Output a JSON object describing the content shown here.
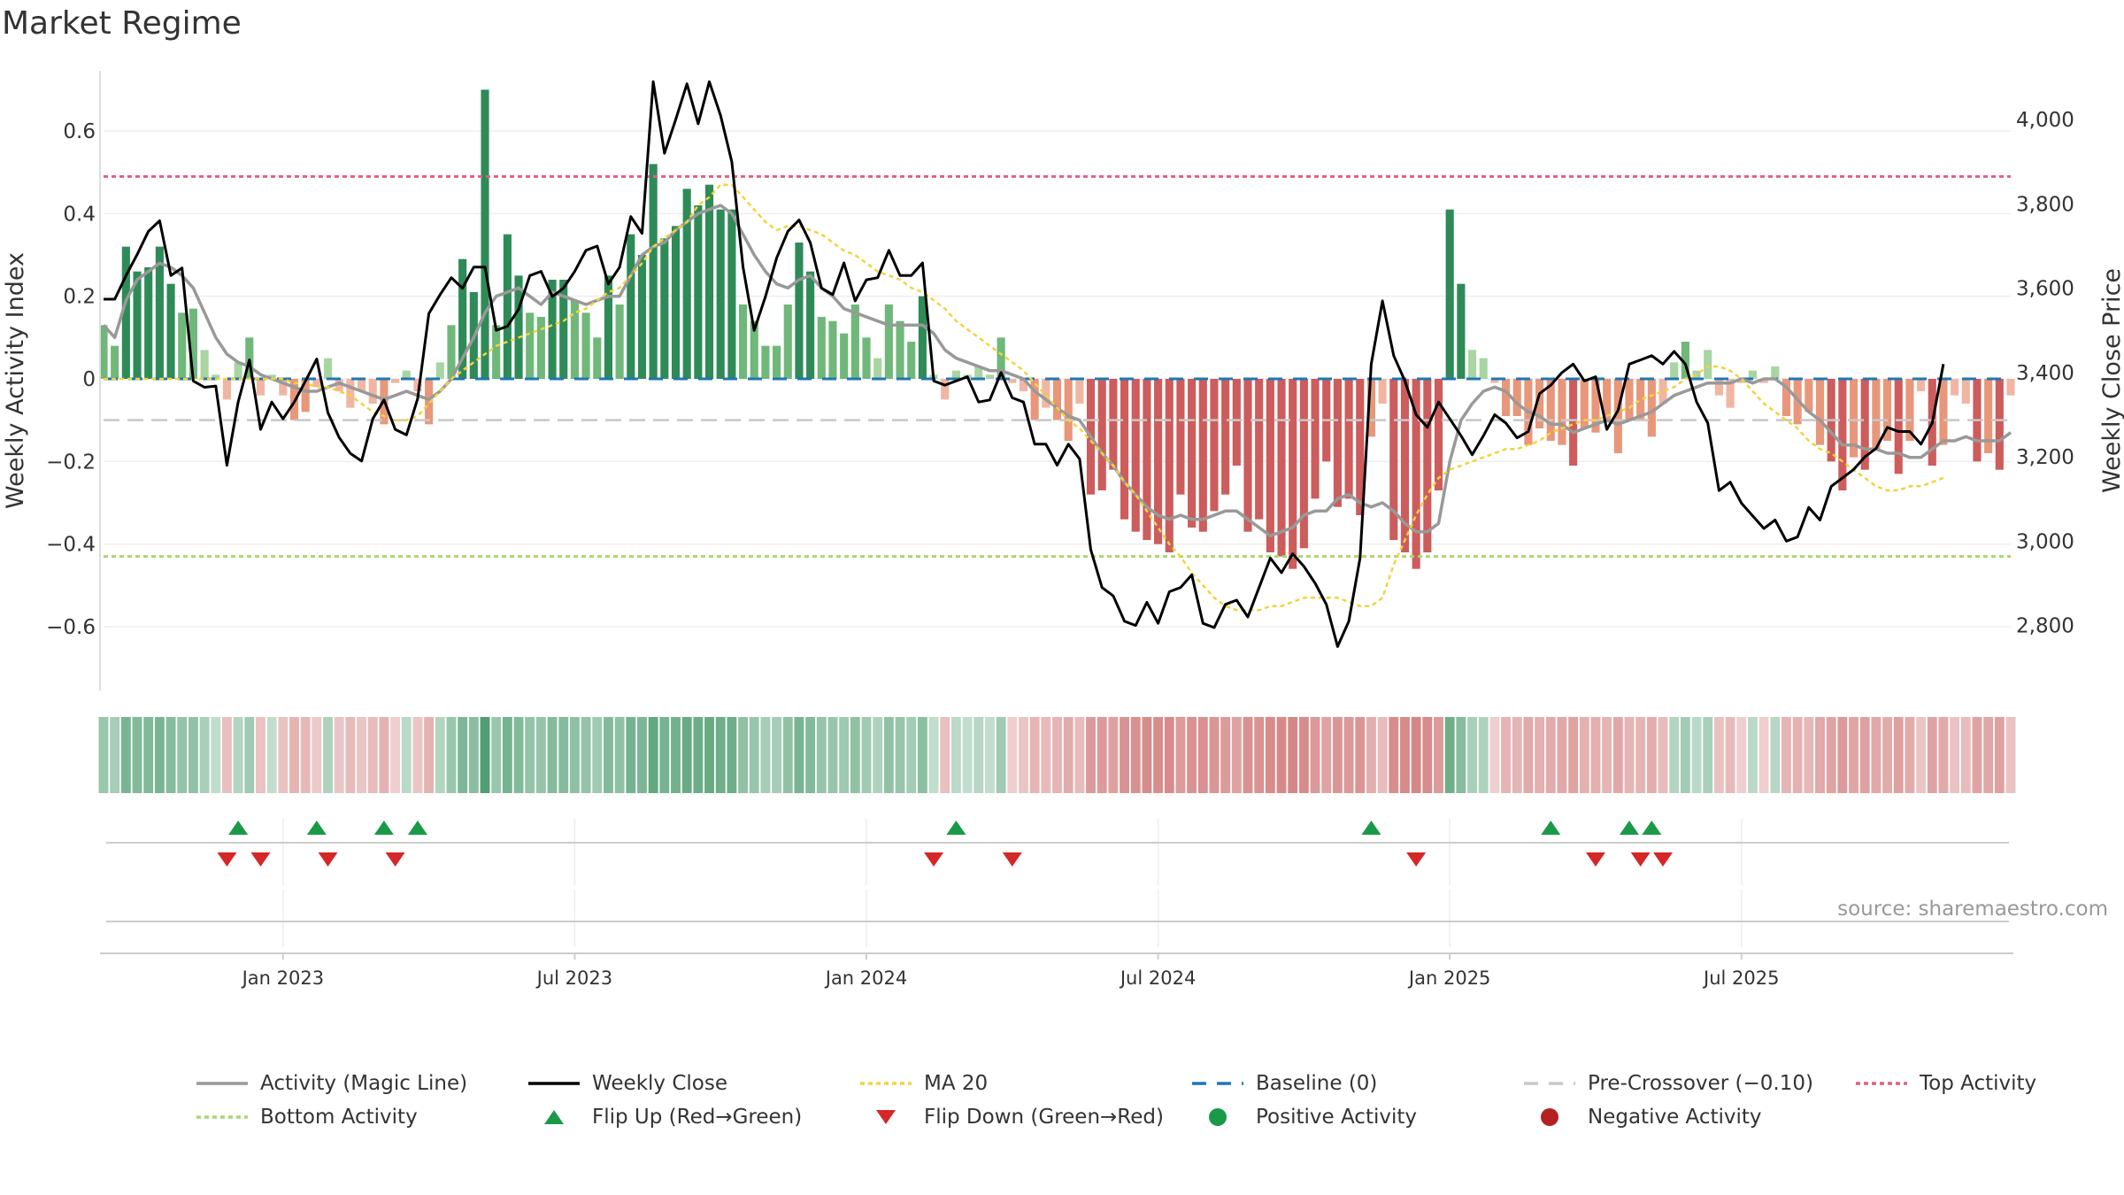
{
  "chart_data": {
    "type": "bar+line",
    "title": "Market Regime",
    "source_note": "source: sharemaestro.com",
    "x_ticks": [
      "Jan 2023",
      "Jul 2023",
      "Jan 2024",
      "Jul 2024",
      "Jan 2025",
      "Jul 2025"
    ],
    "left_axis": {
      "label": "Weekly Activity Index",
      "range": [
        -0.75,
        0.75
      ],
      "ticks": [
        -0.6,
        -0.4,
        -0.2,
        0,
        0.2,
        0.4,
        0.6
      ],
      "tick_labels": [
        "−0.6",
        "−0.4",
        "−0.2",
        "0",
        "0.2",
        "0.4",
        "0.6"
      ]
    },
    "right_axis": {
      "label": "Weekly Close Price",
      "range": [
        2650,
        4120
      ],
      "ticks": [
        2800,
        3000,
        3200,
        3400,
        3600,
        3800,
        4000
      ],
      "tick_labels": [
        "2,800",
        "3,000",
        "3,200",
        "3,400",
        "3,600",
        "3,800",
        "4,000"
      ]
    },
    "reference_lines": {
      "top_activity": 0.49,
      "bottom_activity": -0.43,
      "pre_crossover": -0.1,
      "baseline": 0
    },
    "activity": [
      0.13,
      0.08,
      0.32,
      0.26,
      0.27,
      0.32,
      0.23,
      0.16,
      0.17,
      0.07,
      0.01,
      -0.05,
      0.04,
      0.1,
      -0.04,
      0.01,
      -0.04,
      -0.1,
      -0.08,
      -0.02,
      0.05,
      -0.03,
      -0.07,
      -0.03,
      -0.06,
      -0.11,
      -0.01,
      0.02,
      -0.03,
      -0.11,
      0.04,
      0.13,
      0.29,
      0.21,
      0.7,
      0.13,
      0.35,
      0.25,
      0.16,
      0.15,
      0.24,
      0.24,
      0.19,
      0.16,
      0.1,
      0.25,
      0.18,
      0.35,
      0.3,
      0.52,
      0.34,
      0.37,
      0.46,
      0.42,
      0.47,
      0.41,
      0.41,
      0.18,
      0.14,
      0.08,
      0.08,
      0.18,
      0.33,
      0.26,
      0.15,
      0.14,
      0.11,
      0.18,
      0.1,
      0.05,
      0.18,
      0.14,
      0.09,
      0.2,
      0.01,
      -0.05,
      0.02,
      0.01,
      0.03,
      0.01,
      0.1,
      -0.01,
      -0.03,
      -0.1,
      -0.07,
      -0.1,
      -0.15,
      -0.06,
      -0.28,
      -0.27,
      -0.22,
      -0.34,
      -0.37,
      -0.39,
      -0.4,
      -0.42,
      -0.28,
      -0.36,
      -0.37,
      -0.32,
      -0.28,
      -0.21,
      -0.37,
      -0.34,
      -0.42,
      -0.43,
      -0.46,
      -0.41,
      -0.29,
      -0.2,
      -0.31,
      -0.29,
      -0.33,
      -0.14,
      -0.06,
      -0.39,
      -0.42,
      -0.46,
      -0.42,
      -0.27,
      0.41,
      0.23,
      0.07,
      0.05,
      -0.01,
      -0.09,
      -0.09,
      -0.16,
      -0.12,
      -0.15,
      -0.16,
      -0.21,
      -0.12,
      -0.13,
      -0.1,
      -0.18,
      -0.1,
      -0.1,
      -0.14,
      -0.06,
      0.04,
      0.09,
      0.02,
      0.07,
      -0.04,
      -0.07,
      -0.01,
      0.02,
      -0.01,
      0.03,
      -0.09,
      -0.11,
      -0.08,
      -0.16,
      -0.2,
      -0.27,
      -0.19,
      -0.22,
      -0.17,
      -0.15,
      -0.23,
      -0.15,
      -0.03,
      -0.21,
      -0.16,
      -0.04,
      -0.06,
      -0.2,
      -0.18,
      -0.22,
      -0.04
    ],
    "weekly_close": [
      3574,
      3574,
      3630,
      3680,
      3735,
      3760,
      3630,
      3648,
      3380,
      3365,
      3368,
      3180,
      3330,
      3430,
      3265,
      3330,
      3290,
      3330,
      3380,
      3432,
      3305,
      3246,
      3208,
      3190,
      3290,
      3335,
      3265,
      3252,
      3338,
      3540,
      3585,
      3625,
      3600,
      3650,
      3650,
      3500,
      3510,
      3550,
      3630,
      3640,
      3580,
      3600,
      3640,
      3690,
      3700,
      3610,
      3650,
      3770,
      3730,
      4090,
      3920,
      4000,
      4085,
      3990,
      4090,
      4010,
      3900,
      3650,
      3500,
      3580,
      3672,
      3735,
      3762,
      3708,
      3600,
      3585,
      3660,
      3570,
      3620,
      3625,
      3690,
      3630,
      3630,
      3660,
      3380,
      3370,
      3380,
      3390,
      3330,
      3335,
      3400,
      3340,
      3330,
      3230,
      3230,
      3180,
      3230,
      3195,
      2980,
      2890,
      2870,
      2810,
      2800,
      2855,
      2805,
      2880,
      2890,
      2920,
      2805,
      2795,
      2850,
      2860,
      2820,
      2890,
      2960,
      2925,
      2970,
      2940,
      2900,
      2850,
      2750,
      2810,
      2960,
      3420,
      3570,
      3440,
      3380,
      3300,
      3270,
      3330,
      3290,
      3250,
      3205,
      3250,
      3300,
      3280,
      3245,
      3260,
      3350,
      3370,
      3400,
      3420,
      3380,
      3390,
      3265,
      3310,
      3420,
      3430,
      3440,
      3420,
      3450,
      3420,
      3330,
      3280,
      3120,
      3140,
      3090,
      3060,
      3030,
      3050,
      3000,
      3010,
      3080,
      3050,
      3130,
      3150,
      3170,
      3200,
      3220,
      3270,
      3260,
      3260,
      3230,
      3280,
      3420
    ],
    "magic_line": [
      0.13,
      0.1,
      0.19,
      0.24,
      0.26,
      0.28,
      0.27,
      0.25,
      0.22,
      0.16,
      0.1,
      0.06,
      0.04,
      0.03,
      0.01,
      0.0,
      -0.01,
      -0.02,
      -0.03,
      -0.03,
      -0.02,
      -0.01,
      -0.02,
      -0.03,
      -0.04,
      -0.05,
      -0.04,
      -0.03,
      -0.04,
      -0.05,
      -0.03,
      0.0,
      0.05,
      0.1,
      0.16,
      0.2,
      0.21,
      0.22,
      0.2,
      0.18,
      0.21,
      0.2,
      0.19,
      0.18,
      0.19,
      0.2,
      0.2,
      0.25,
      0.3,
      0.32,
      0.33,
      0.36,
      0.38,
      0.4,
      0.41,
      0.42,
      0.4,
      0.35,
      0.3,
      0.26,
      0.23,
      0.22,
      0.24,
      0.25,
      0.22,
      0.2,
      0.17,
      0.16,
      0.15,
      0.14,
      0.13,
      0.13,
      0.13,
      0.13,
      0.11,
      0.07,
      0.05,
      0.04,
      0.03,
      0.02,
      0.02,
      0.01,
      0.0,
      -0.03,
      -0.05,
      -0.07,
      -0.09,
      -0.1,
      -0.14,
      -0.18,
      -0.21,
      -0.25,
      -0.28,
      -0.31,
      -0.33,
      -0.34,
      -0.33,
      -0.34,
      -0.34,
      -0.33,
      -0.32,
      -0.32,
      -0.34,
      -0.36,
      -0.38,
      -0.37,
      -0.36,
      -0.33,
      -0.32,
      -0.32,
      -0.29,
      -0.28,
      -0.3,
      -0.31,
      -0.3,
      -0.32,
      -0.35,
      -0.37,
      -0.37,
      -0.35,
      -0.2,
      -0.1,
      -0.06,
      -0.03,
      -0.02,
      -0.03,
      -0.06,
      -0.08,
      -0.09,
      -0.11,
      -0.11,
      -0.13,
      -0.12,
      -0.11,
      -0.1,
      -0.11,
      -0.1,
      -0.09,
      -0.08,
      -0.06,
      -0.04,
      -0.03,
      -0.02,
      -0.01,
      -0.01,
      -0.01,
      0.0,
      -0.01,
      0.0,
      0.0,
      -0.02,
      -0.05,
      -0.08,
      -0.1,
      -0.13,
      -0.16,
      -0.16,
      -0.17,
      -0.17,
      -0.18,
      -0.18,
      -0.19,
      -0.19,
      -0.17,
      -0.15,
      -0.15,
      -0.14,
      -0.15,
      -0.15,
      -0.15,
      -0.13
    ],
    "ma20": [
      0,
      0,
      0,
      0,
      0,
      0,
      0,
      0,
      0,
      0,
      0,
      0,
      0,
      0,
      0,
      0,
      0,
      -0.01,
      -0.01,
      -0.02,
      -0.02,
      -0.03,
      -0.04,
      -0.06,
      -0.08,
      -0.09,
      -0.1,
      -0.1,
      -0.09,
      -0.06,
      -0.03,
      0.0,
      0.02,
      0.04,
      0.06,
      0.08,
      0.09,
      0.1,
      0.11,
      0.12,
      0.13,
      0.14,
      0.16,
      0.17,
      0.19,
      0.21,
      0.22,
      0.25,
      0.28,
      0.32,
      0.34,
      0.36,
      0.38,
      0.42,
      0.44,
      0.47,
      0.47,
      0.44,
      0.41,
      0.38,
      0.36,
      0.37,
      0.37,
      0.36,
      0.35,
      0.33,
      0.31,
      0.3,
      0.28,
      0.26,
      0.25,
      0.24,
      0.22,
      0.21,
      0.19,
      0.17,
      0.14,
      0.12,
      0.1,
      0.08,
      0.06,
      0.04,
      0.02,
      -0.01,
      -0.04,
      -0.07,
      -0.1,
      -0.12,
      -0.15,
      -0.18,
      -0.21,
      -0.25,
      -0.28,
      -0.32,
      -0.36,
      -0.4,
      -0.43,
      -0.47,
      -0.5,
      -0.53,
      -0.55,
      -0.56,
      -0.56,
      -0.56,
      -0.55,
      -0.55,
      -0.54,
      -0.53,
      -0.53,
      -0.53,
      -0.53,
      -0.54,
      -0.55,
      -0.55,
      -0.53,
      -0.45,
      -0.39,
      -0.33,
      -0.28,
      -0.24,
      -0.22,
      -0.21,
      -0.2,
      -0.19,
      -0.18,
      -0.17,
      -0.17,
      -0.16,
      -0.15,
      -0.13,
      -0.12,
      -0.11,
      -0.1,
      -0.1,
      -0.09,
      -0.08,
      -0.07,
      -0.05,
      -0.04,
      -0.03,
      -0.02,
      0.0,
      0.01,
      0.03,
      0.03,
      0.02,
      0.0,
      -0.03,
      -0.06,
      -0.08,
      -0.1,
      -0.12,
      -0.15,
      -0.17,
      -0.18,
      -0.2,
      -0.22,
      -0.24,
      -0.26,
      -0.27,
      -0.27,
      -0.26,
      -0.26,
      -0.25,
      -0.24
    ],
    "flip_up_weeks": [
      12,
      19,
      25,
      28,
      76,
      113,
      129,
      136,
      138
    ],
    "flip_down_weeks": [
      11,
      14,
      20,
      26,
      74,
      81,
      117,
      133,
      137,
      139
    ],
    "legend": [
      {
        "label": "Activity (Magic Line)",
        "color": "#999999"
      },
      {
        "label": "Weekly Close",
        "color": "#000000"
      },
      {
        "label": "MA 20",
        "color": "#f2d33d"
      },
      {
        "label": "Baseline (0)",
        "color": "#1f77b4"
      },
      {
        "label": "Pre-Crossover (−0.10)",
        "color": "#c8c8c8"
      },
      {
        "label": "Top Activity",
        "color": "#e0607e"
      },
      {
        "label": "Bottom Activity",
        "color": "#a8d86e"
      },
      {
        "label": "Flip Up (Red→Green)",
        "color": "#1a9a48"
      },
      {
        "label": "Flip Down (Green→Red)",
        "color": "#d62728"
      },
      {
        "label": "Positive Activity",
        "color": "#1a9a48"
      },
      {
        "label": "Negative Activity",
        "color": "#b22222"
      }
    ]
  }
}
